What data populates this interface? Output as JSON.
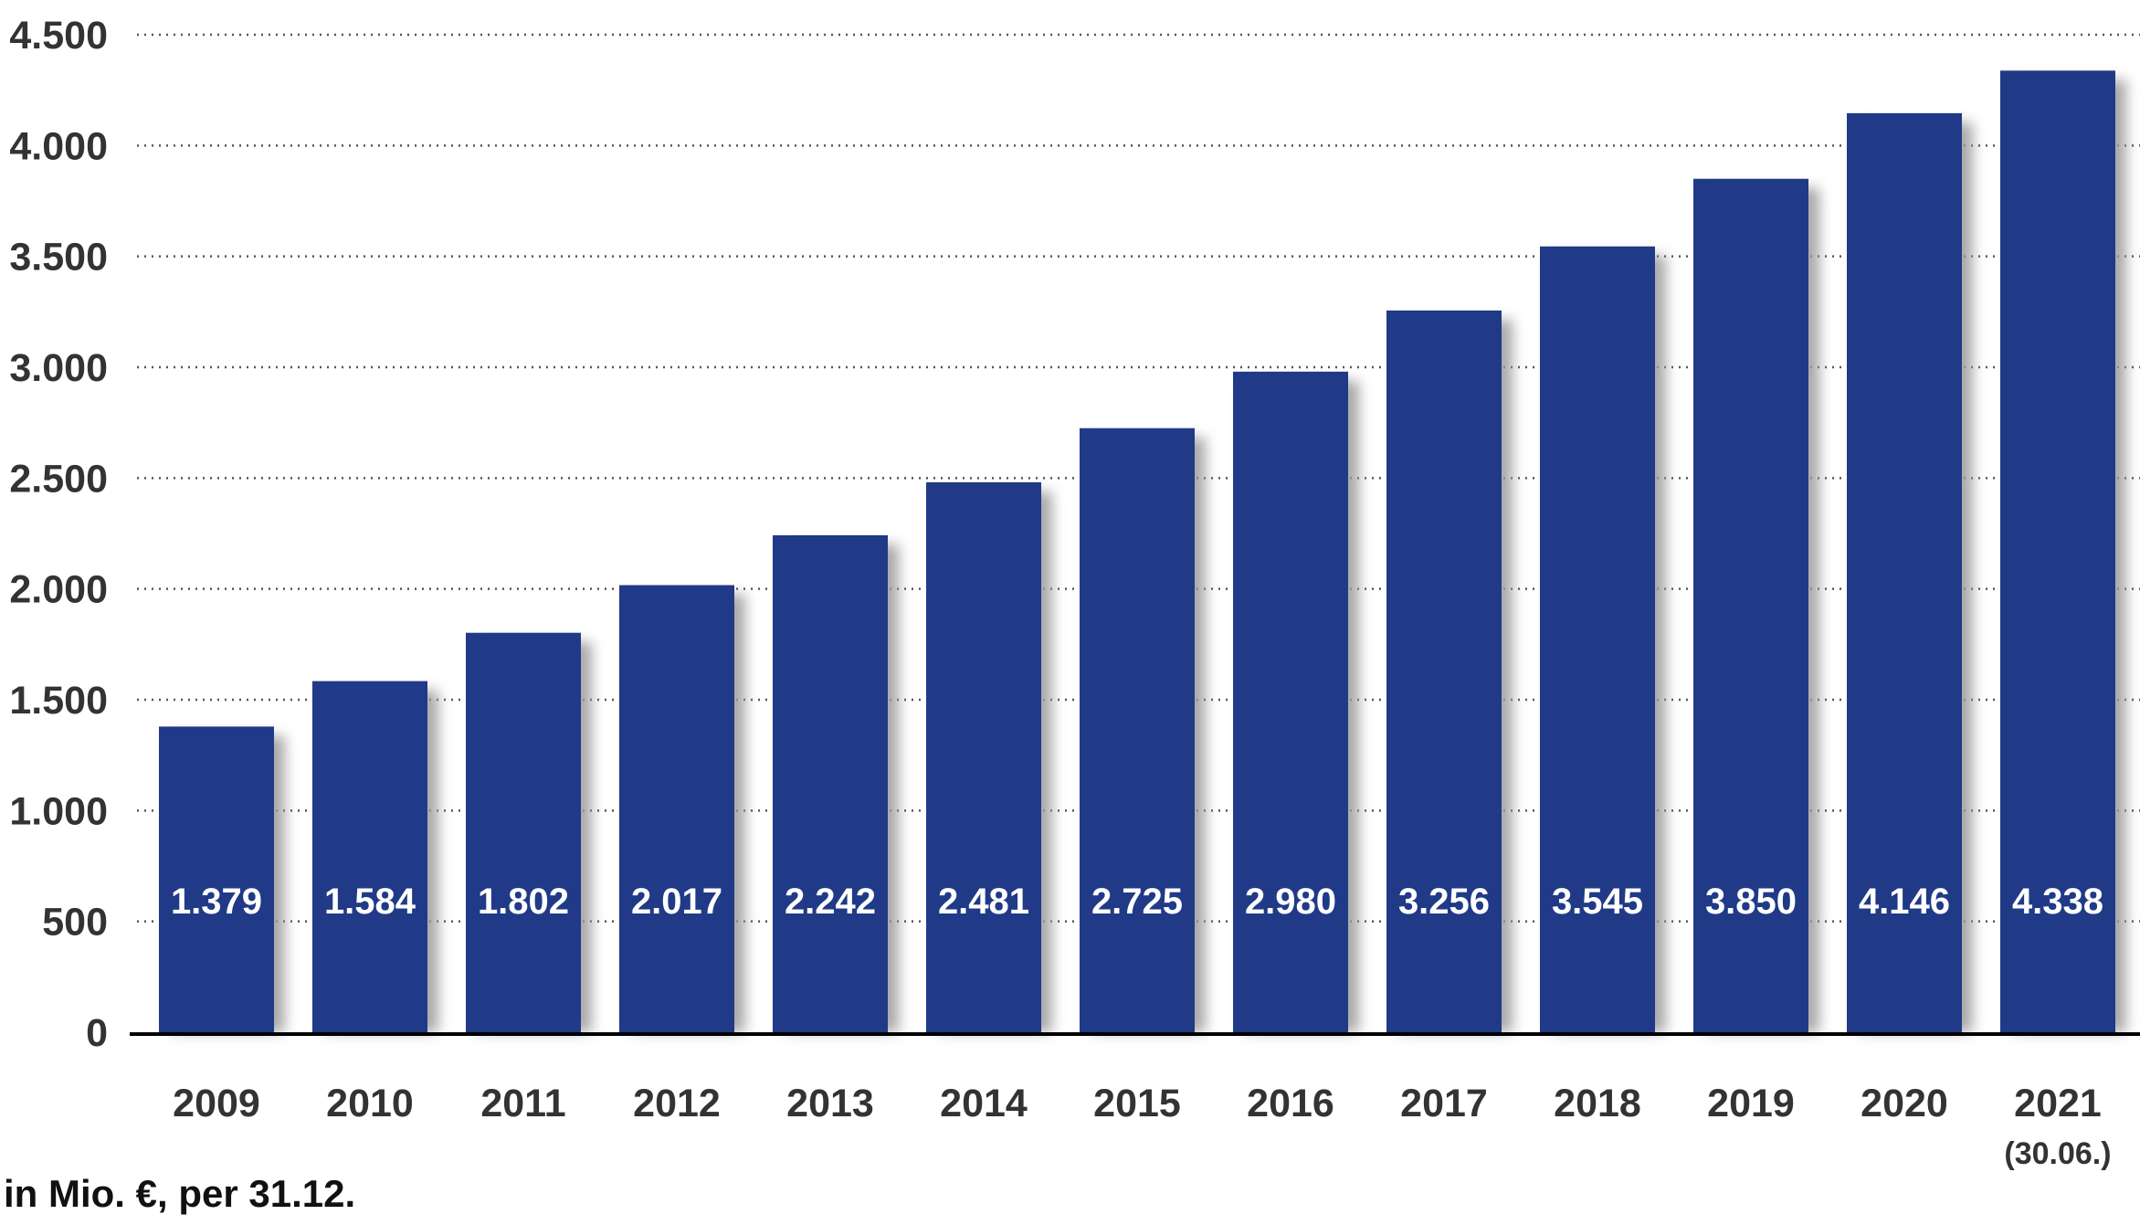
{
  "chart_data": {
    "type": "bar",
    "categories": [
      "2009",
      "2010",
      "2011",
      "2012",
      "2013",
      "2014",
      "2015",
      "2016",
      "2017",
      "2018",
      "2019",
      "2020",
      "2021"
    ],
    "category_sublabels": [
      "",
      "",
      "",
      "",
      "",
      "",
      "",
      "",
      "",
      "",
      "",
      "",
      "(30.06.)"
    ],
    "values": [
      1379,
      1584,
      1802,
      2017,
      2242,
      2481,
      2725,
      2980,
      3256,
      3545,
      3850,
      4146,
      4338
    ],
    "data_labels": [
      "1.379",
      "1.584",
      "1.802",
      "2.017",
      "2.242",
      "2.481",
      "2.725",
      "2.980",
      "3.256",
      "3.545",
      "3.850",
      "4.146",
      "4.338"
    ],
    "y_ticks": [
      0,
      500,
      1000,
      1500,
      2000,
      2500,
      3000,
      3500,
      4000,
      4500
    ],
    "y_tick_labels": [
      "0",
      "500",
      "1.000",
      "1.500",
      "2.000",
      "2.500",
      "3.000",
      "3.500",
      "4.000",
      "4.500"
    ],
    "ylim": [
      0,
      4500
    ],
    "grid": "dotted horizontal",
    "legend": "none",
    "bar_color": "#203a87",
    "shadow_color": "#9a9a9a",
    "title": "",
    "xlabel": "",
    "ylabel": ""
  },
  "footnote": "in Mio. €, per 31.12."
}
